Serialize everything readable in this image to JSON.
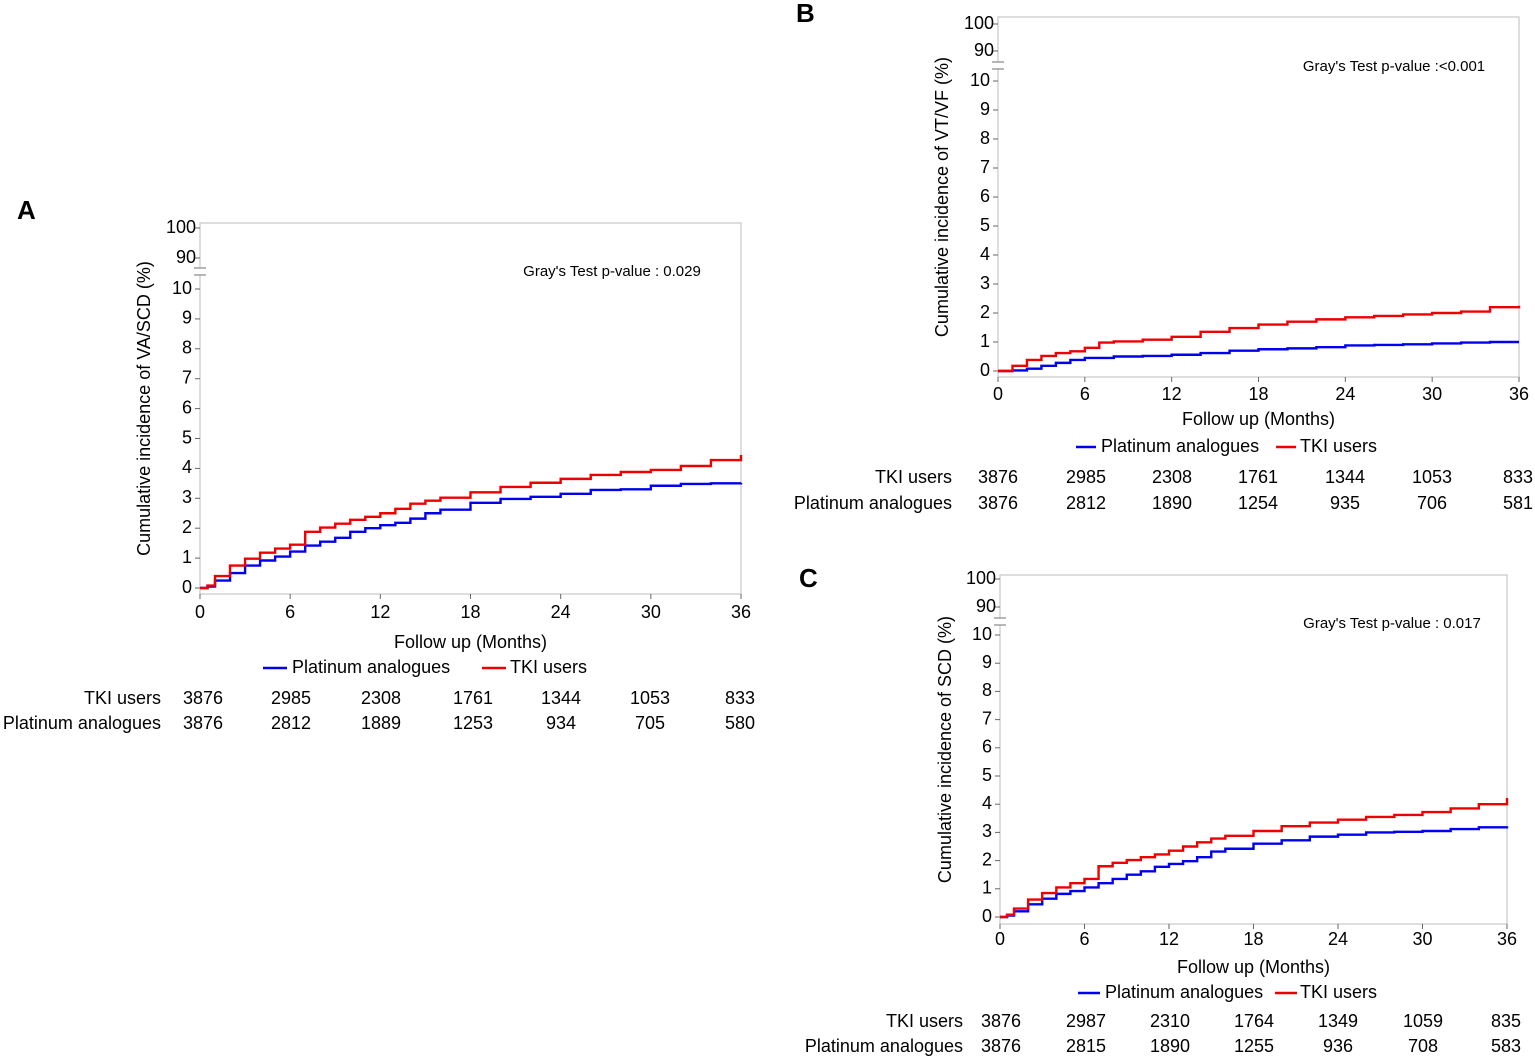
{
  "colors": {
    "platinum": "#0000ee",
    "tki": "#ee0000",
    "frame": "#c8c8c8",
    "text": "#000000"
  },
  "chart_data": [
    {
      "panel": "A",
      "type": "line",
      "title": "",
      "ylabel": "Cumulative incidence of  VA/SCD (%)",
      "xlabel": "Follow up (Months)",
      "annotation": "Gray's Test p-value : 0.029",
      "x_ticks": [
        0,
        6,
        12,
        18,
        24,
        30,
        36
      ],
      "y_ticks": [
        0,
        1,
        2,
        3,
        4,
        5,
        6,
        7,
        8,
        9,
        10
      ],
      "y_break_ticks": [
        90,
        100
      ],
      "xlim": [
        0,
        36
      ],
      "ylim": [
        0,
        10
      ],
      "legend": [
        "Platinum analogues",
        "TKI users"
      ],
      "series": [
        {
          "name": "Platinum analogues",
          "x": [
            0,
            0.5,
            1,
            2,
            3,
            4,
            5,
            6,
            7,
            8,
            9,
            10,
            11,
            12,
            13,
            14,
            15,
            16,
            18,
            20,
            22,
            24,
            26,
            28,
            30,
            32,
            34,
            36
          ],
          "values": [
            0,
            0.05,
            0.25,
            0.5,
            0.75,
            0.92,
            1.05,
            1.22,
            1.42,
            1.55,
            1.68,
            1.88,
            2.0,
            2.1,
            2.18,
            2.32,
            2.5,
            2.62,
            2.85,
            2.98,
            3.05,
            3.15,
            3.28,
            3.3,
            3.42,
            3.48,
            3.5,
            3.52
          ]
        },
        {
          "name": "TKI users",
          "x": [
            0,
            0.5,
            1,
            2,
            3,
            4,
            5,
            6,
            7,
            8,
            9,
            10,
            11,
            12,
            13,
            14,
            15,
            16,
            18,
            20,
            22,
            24,
            26,
            28,
            30,
            32,
            34,
            36
          ],
          "values": [
            0,
            0.08,
            0.4,
            0.75,
            0.98,
            1.18,
            1.32,
            1.45,
            1.88,
            2.02,
            2.15,
            2.28,
            2.38,
            2.5,
            2.65,
            2.82,
            2.92,
            3.02,
            3.2,
            3.38,
            3.52,
            3.65,
            3.78,
            3.88,
            3.95,
            4.08,
            4.28,
            4.45
          ]
        }
      ],
      "risk_table": {
        "tki_label": "TKI users",
        "platinum_label": "Platinum analogues",
        "tki": [
          3876,
          2985,
          2308,
          1761,
          1344,
          1053,
          833
        ],
        "platinum": [
          3876,
          2812,
          1889,
          1253,
          934,
          705,
          580
        ]
      }
    },
    {
      "panel": "B",
      "type": "line",
      "title": "",
      "ylabel": "Cumulative incidence of VT/VF (%)",
      "xlabel": "Follow up (Months)",
      "annotation": "Gray's Test p-value :<0.001",
      "x_ticks": [
        0,
        6,
        12,
        18,
        24,
        30,
        36
      ],
      "y_ticks": [
        0,
        1,
        2,
        3,
        4,
        5,
        6,
        7,
        8,
        9,
        10
      ],
      "y_break_ticks": [
        90,
        100
      ],
      "xlim": [
        0,
        36
      ],
      "ylim": [
        0,
        10
      ],
      "legend": [
        "Platinum analogues",
        "TKI users"
      ],
      "series": [
        {
          "name": "Platinum analogues",
          "x": [
            0,
            1,
            2,
            3,
            4,
            5,
            6,
            8,
            10,
            12,
            14,
            16,
            18,
            20,
            22,
            24,
            26,
            28,
            30,
            32,
            34,
            36
          ],
          "values": [
            0,
            0.02,
            0.08,
            0.18,
            0.28,
            0.38,
            0.45,
            0.5,
            0.52,
            0.56,
            0.62,
            0.7,
            0.75,
            0.78,
            0.82,
            0.88,
            0.9,
            0.92,
            0.95,
            0.98,
            1.0,
            1.0
          ]
        },
        {
          "name": "TKI users",
          "x": [
            0,
            1,
            2,
            3,
            4,
            5,
            6,
            7,
            8,
            10,
            12,
            14,
            16,
            18,
            20,
            22,
            24,
            26,
            28,
            30,
            32,
            34,
            36
          ],
          "values": [
            0,
            0.18,
            0.38,
            0.52,
            0.62,
            0.68,
            0.8,
            0.98,
            1.02,
            1.08,
            1.18,
            1.35,
            1.48,
            1.6,
            1.7,
            1.78,
            1.85,
            1.9,
            1.95,
            2.0,
            2.05,
            2.2,
            2.25
          ]
        }
      ],
      "risk_table": {
        "tki_label": "TKI users",
        "platinum_label": "Platinum analogues",
        "tki": [
          3876,
          2985,
          2308,
          1761,
          1344,
          1053,
          833
        ],
        "platinum": [
          3876,
          2812,
          1890,
          1254,
          935,
          706,
          581
        ]
      }
    },
    {
      "panel": "C",
      "type": "line",
      "title": "",
      "ylabel": "Cumulative incidence of SCD (%)",
      "xlabel": "Follow up (Months)",
      "annotation": "Gray's Test p-value : 0.017",
      "x_ticks": [
        0,
        6,
        12,
        18,
        24,
        30,
        36
      ],
      "y_ticks": [
        0,
        1,
        2,
        3,
        4,
        5,
        6,
        7,
        8,
        9,
        10
      ],
      "y_break_ticks": [
        90,
        100
      ],
      "xlim": [
        0,
        36
      ],
      "ylim": [
        0,
        10
      ],
      "legend": [
        "Platinum analogues",
        "TKI users"
      ],
      "series": [
        {
          "name": "Platinum analogues",
          "x": [
            0,
            0.5,
            1,
            2,
            3,
            4,
            5,
            6,
            7,
            8,
            9,
            10,
            11,
            12,
            13,
            14,
            15,
            16,
            18,
            20,
            22,
            24,
            26,
            28,
            30,
            32,
            34,
            36
          ],
          "values": [
            0,
            0.05,
            0.2,
            0.45,
            0.65,
            0.82,
            0.92,
            1.05,
            1.2,
            1.35,
            1.5,
            1.62,
            1.78,
            1.88,
            1.98,
            2.12,
            2.32,
            2.42,
            2.6,
            2.72,
            2.85,
            2.92,
            3.0,
            3.02,
            3.05,
            3.12,
            3.18,
            3.22
          ]
        },
        {
          "name": "TKI users",
          "x": [
            0,
            0.5,
            1,
            2,
            3,
            4,
            5,
            6,
            7,
            8,
            9,
            10,
            11,
            12,
            13,
            14,
            15,
            16,
            18,
            20,
            22,
            24,
            26,
            28,
            30,
            32,
            34,
            36
          ],
          "values": [
            0,
            0.08,
            0.3,
            0.62,
            0.85,
            1.05,
            1.2,
            1.35,
            1.8,
            1.92,
            2.02,
            2.12,
            2.22,
            2.35,
            2.5,
            2.65,
            2.78,
            2.88,
            3.05,
            3.22,
            3.35,
            3.45,
            3.55,
            3.62,
            3.72,
            3.85,
            4.0,
            4.22
          ]
        }
      ],
      "risk_table": {
        "tki_label": "TKI users",
        "platinum_label": "Platinum analogues",
        "tki": [
          3876,
          2987,
          2310,
          1764,
          1349,
          1059,
          835
        ],
        "platinum": [
          3876,
          2815,
          1890,
          1255,
          936,
          708,
          583
        ]
      }
    }
  ]
}
